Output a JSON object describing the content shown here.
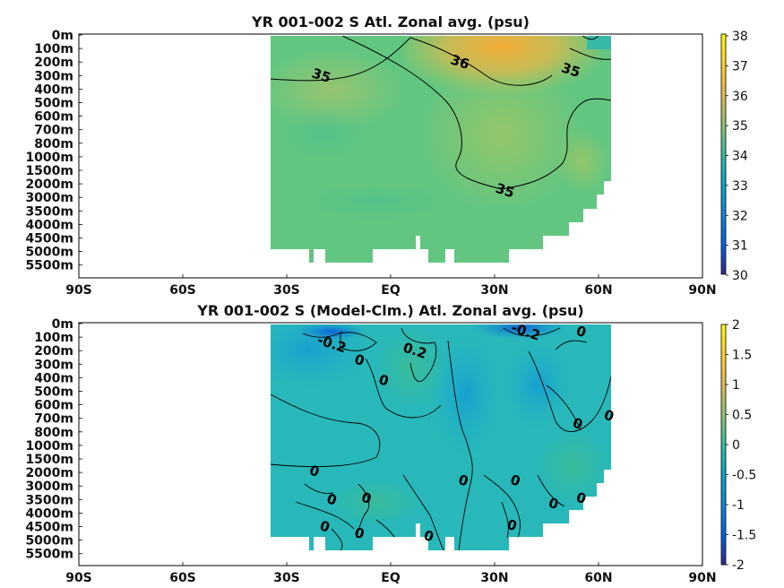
{
  "chart_data": [
    {
      "type": "heatmap",
      "title": "YR 001-002 S Atl. Zonal avg. (psu)",
      "x_ticks": [
        "90S",
        "60S",
        "30S",
        "EQ",
        "30N",
        "60N",
        "90N"
      ],
      "y_ticks": [
        "0m",
        "100m",
        "200m",
        "300m",
        "400m",
        "500m",
        "600m",
        "700m",
        "800m",
        "1000m",
        "1500m",
        "2000m",
        "3000m",
        "3500m",
        "4000m",
        "4500m",
        "5000m",
        "5500m"
      ],
      "colorbar": {
        "min": 30,
        "max": 38,
        "ticks": [
          "30",
          "31",
          "32",
          "33",
          "34",
          "35",
          "36",
          "37",
          "38"
        ]
      },
      "colormap": "parula",
      "contour_labels": [
        {
          "text": "35",
          "lat": -20,
          "depth_index": 3.0
        },
        {
          "text": "36",
          "lat": 20,
          "depth_index": 2.0
        },
        {
          "text": "35",
          "lat": 52,
          "depth_index": 2.6
        },
        {
          "text": "35",
          "lat": 33,
          "depth_index": 11.5
        }
      ]
    },
    {
      "type": "heatmap",
      "title": "YR 001-002 S (Model-Clm.) Atl. Zonal avg. (psu)",
      "x_ticks": [
        "90S",
        "60S",
        "30S",
        "EQ",
        "30N",
        "60N",
        "90N"
      ],
      "y_ticks": [
        "0m",
        "100m",
        "200m",
        "300m",
        "400m",
        "500m",
        "600m",
        "700m",
        "800m",
        "1000m",
        "1500m",
        "2000m",
        "3000m",
        "3500m",
        "4000m",
        "4500m",
        "5000m",
        "5500m"
      ],
      "colorbar": {
        "min": -2,
        "max": 2,
        "ticks": [
          "2",
          "1.5",
          "1",
          "0.5",
          "0",
          "-0.5",
          "-1",
          "-1.5",
          "-2"
        ]
      },
      "colormap": "parula",
      "contour_labels": [
        {
          "text": "-0.2",
          "lat": -17,
          "depth_index": 1.5
        },
        {
          "text": "0.2",
          "lat": 7,
          "depth_index": 2.0
        },
        {
          "text": "-0.2",
          "lat": 39,
          "depth_index": 0.6
        },
        {
          "text": "0",
          "lat": 55,
          "depth_index": 0.6
        },
        {
          "text": "0",
          "lat": -9,
          "depth_index": 2.7
        },
        {
          "text": "0",
          "lat": -2,
          "depth_index": 4.2
        },
        {
          "text": "0",
          "lat": 54,
          "depth_index": 7.4
        },
        {
          "text": "0",
          "lat": 63,
          "depth_index": 6.8
        },
        {
          "text": "0",
          "lat": -22,
          "depth_index": 10.9
        },
        {
          "text": "0",
          "lat": 21,
          "depth_index": 11.6
        },
        {
          "text": "0",
          "lat": 36,
          "depth_index": 11.6
        },
        {
          "text": "0",
          "lat": -7,
          "depth_index": 12.9
        },
        {
          "text": "0",
          "lat": -17,
          "depth_index": 13.0
        },
        {
          "text": "0",
          "lat": 47,
          "depth_index": 13.3
        },
        {
          "text": "0",
          "lat": 55,
          "depth_index": 12.9
        },
        {
          "text": "0",
          "lat": -19,
          "depth_index": 15.0
        },
        {
          "text": "0",
          "lat": -9,
          "depth_index": 15.5
        },
        {
          "text": "0",
          "lat": 11,
          "depth_index": 15.7
        },
        {
          "text": "0",
          "lat": 35,
          "depth_index": 14.9
        }
      ]
    }
  ]
}
